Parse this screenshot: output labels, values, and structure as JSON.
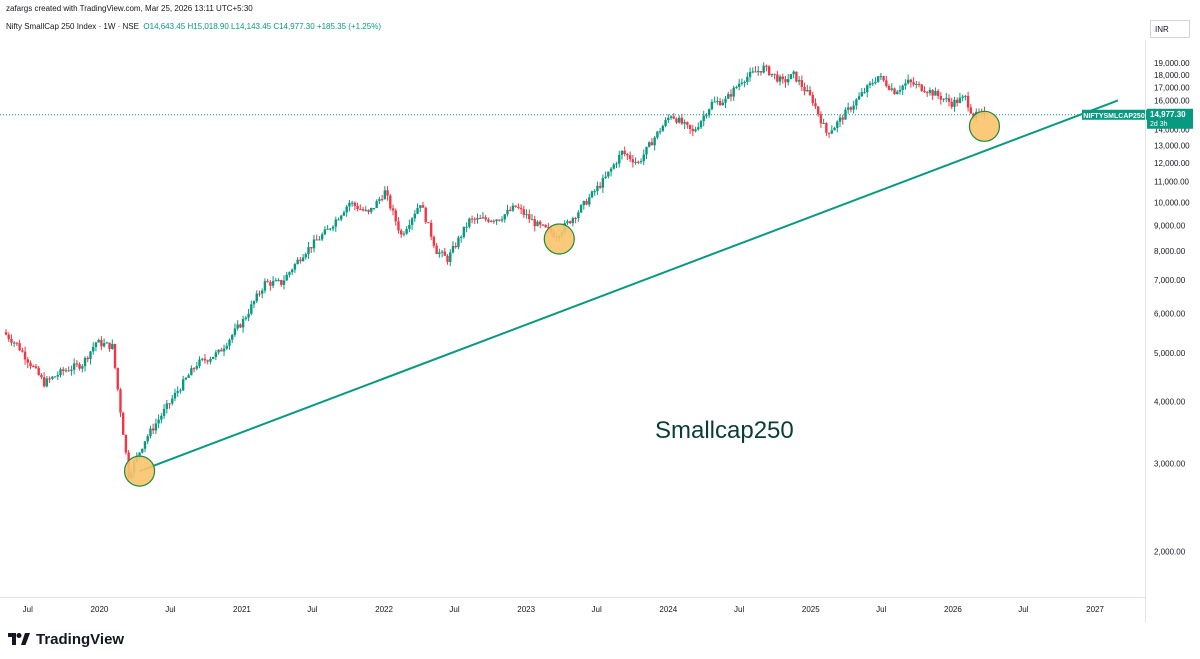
{
  "header": {
    "credit": "zafargs created with TradingView.com, Mar 25, 2026 13:11 UTC+5:30"
  },
  "symbol": {
    "name": "Nifty SmallCap 250 Index · 1W · NSE",
    "open": "O14,643.45",
    "high": "H15,018.90",
    "low": "L14,143.45",
    "close": "C14,977.30",
    "change": "+185.35 (+1.25%)"
  },
  "currency": "INR",
  "footer": {
    "brand": "TradingView"
  },
  "colors": {
    "up": "#089981",
    "down": "#f23645",
    "trendline": "#089981",
    "circle_fill": "#f9c46b",
    "circle_stroke": "#1b8a3c",
    "price_tag": "#089981",
    "annotation": "#0b3d36"
  },
  "chart_data": {
    "type": "candlestick",
    "interval": "1W",
    "y_scale": "log",
    "ylim": [
      1700,
      20000
    ],
    "y_ticks": [
      2000,
      3000,
      4000,
      5000,
      6000,
      7000,
      8000,
      9000,
      10000,
      11000,
      12000,
      13000,
      14000,
      15000,
      16000,
      17000,
      18000,
      19000
    ],
    "y_tick_labels": [
      "2,000.00",
      "3,000.00",
      "4,000.00",
      "5,000.00",
      "6,000.00",
      "7,000.00",
      "8,000.00",
      "9,000.00",
      "10,000.00",
      "11,000.00",
      "12,000.00",
      "13,000.00",
      "14,000.00",
      "15,000.00",
      "16,000.00",
      "17,000.00",
      "18,000.00",
      "19,000.00"
    ],
    "x_range": [
      "2019-05-06",
      "2027-03-01"
    ],
    "x_ticks": [
      {
        "date": "2019-07-01",
        "label": "Jul"
      },
      {
        "date": "2020-01-01",
        "label": "2020"
      },
      {
        "date": "2020-07-01",
        "label": "Jul"
      },
      {
        "date": "2021-01-01",
        "label": "2021"
      },
      {
        "date": "2021-07-01",
        "label": "Jul"
      },
      {
        "date": "2022-01-01",
        "label": "2022"
      },
      {
        "date": "2022-07-01",
        "label": "Jul"
      },
      {
        "date": "2023-01-01",
        "label": "2023"
      },
      {
        "date": "2023-07-01",
        "label": "Jul"
      },
      {
        "date": "2024-01-01",
        "label": "2024"
      },
      {
        "date": "2024-07-01",
        "label": "Jul"
      },
      {
        "date": "2025-01-01",
        "label": "2025"
      },
      {
        "date": "2025-07-01",
        "label": "Jul"
      },
      {
        "date": "2026-01-01",
        "label": "2026"
      },
      {
        "date": "2026-07-01",
        "label": "Jul"
      },
      {
        "date": "2027-01-01",
        "label": "2027"
      }
    ],
    "price_path": [
      [
        "2019-05-06",
        5500
      ],
      [
        "2019-06-10",
        5200
      ],
      [
        "2019-08-19",
        4350
      ],
      [
        "2019-10-07",
        4600
      ],
      [
        "2019-11-25",
        4750
      ],
      [
        "2019-12-30",
        5250
      ],
      [
        "2020-02-10",
        5150
      ],
      [
        "2020-03-23",
        2850
      ],
      [
        "2020-05-04",
        3350
      ],
      [
        "2020-07-27",
        4200
      ],
      [
        "2020-09-14",
        4750
      ],
      [
        "2020-11-09",
        5000
      ],
      [
        "2021-01-11",
        5800
      ],
      [
        "2021-03-08",
        6900
      ],
      [
        "2021-04-19",
        6900
      ],
      [
        "2021-06-14",
        7900
      ],
      [
        "2021-08-16",
        8800
      ],
      [
        "2021-10-11",
        10000
      ],
      [
        "2021-11-29",
        9500
      ],
      [
        "2022-01-10",
        10500
      ],
      [
        "2022-02-21",
        8600
      ],
      [
        "2022-04-11",
        10000
      ],
      [
        "2022-05-23",
        8000
      ],
      [
        "2022-06-20",
        7700
      ],
      [
        "2022-08-15",
        9200
      ],
      [
        "2022-10-31",
        9300
      ],
      [
        "2022-12-12",
        9800
      ],
      [
        "2023-02-06",
        9000
      ],
      [
        "2023-03-27",
        8600
      ],
      [
        "2023-05-22",
        9600
      ],
      [
        "2023-07-31",
        11200
      ],
      [
        "2023-09-11",
        12600
      ],
      [
        "2023-10-23",
        12000
      ],
      [
        "2023-12-04",
        13500
      ],
      [
        "2024-01-15",
        15000
      ],
      [
        "2024-03-11",
        13800
      ],
      [
        "2024-04-29",
        15800
      ],
      [
        "2024-06-03",
        16000
      ],
      [
        "2024-07-15",
        17600
      ],
      [
        "2024-09-09",
        18600
      ],
      [
        "2024-10-28",
        17400
      ],
      [
        "2024-11-25",
        18000
      ],
      [
        "2025-01-13",
        16000
      ],
      [
        "2025-02-17",
        13800
      ],
      [
        "2025-03-10",
        14200
      ],
      [
        "2025-05-05",
        16000
      ],
      [
        "2025-06-30",
        17900
      ],
      [
        "2025-08-11",
        16700
      ],
      [
        "2025-09-15",
        17400
      ],
      [
        "2025-11-03",
        16800
      ],
      [
        "2026-01-05",
        15800
      ],
      [
        "2026-02-09",
        16200
      ],
      [
        "2026-03-02",
        14900
      ],
      [
        "2026-03-23",
        14977.3
      ]
    ],
    "trendline": {
      "start": {
        "date": "2020-04-13",
        "value": 2900
      },
      "end": {
        "date": "2027-03-01",
        "value": 16000
      }
    },
    "markers": [
      {
        "date": "2020-04-13",
        "value": 2900
      },
      {
        "date": "2023-03-27",
        "value": 8450
      },
      {
        "date": "2026-03-23",
        "value": 14200
      }
    ],
    "last_price_line": 14977.3,
    "price_tag": {
      "symbol": "NIFTYSMLCAP250",
      "value": "14,977.30",
      "countdown": "2d 3h"
    },
    "annotation": "Smallcap250"
  }
}
